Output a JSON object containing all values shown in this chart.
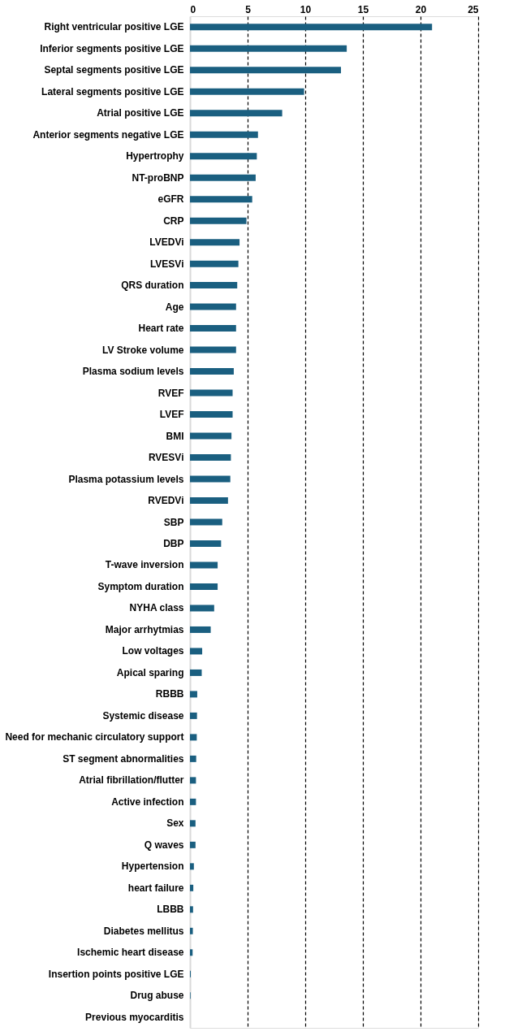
{
  "chart_data": {
    "type": "bar",
    "orientation": "horizontal",
    "categories": [
      "Right ventricular positive LGE",
      "Inferior segments positive LGE",
      "Septal segments positive LGE",
      "Lateral segments positive LGE",
      "Atrial positive LGE",
      "Anterior segments negative LGE",
      "Hypertrophy",
      "NT-proBNP",
      "eGFR",
      "CRP",
      "LVEDVi",
      "LVESVi",
      "QRS duration",
      "Age",
      "Heart rate",
      "LV Stroke volume",
      "Plasma sodium levels",
      "RVEF",
      "LVEF",
      "BMI",
      "RVESVi",
      "Plasma potassium levels",
      "RVEDVi",
      "SBP",
      "DBP",
      "T-wave inversion",
      "Symptom duration",
      "NYHA class",
      "Major arrhytmias",
      "Low voltages",
      "Apical sparing",
      "RBBB",
      "Systemic disease",
      "Need for mechanic circulatory support",
      "ST segment abnormalities",
      "Atrial fibrillation/flutter",
      "Active infection",
      "Sex",
      "Q waves",
      "Hypertension",
      "heart failure",
      "LBBB",
      "Diabetes mellitus",
      "Ischemic heart disease",
      "Insertion points positive LGE",
      "Drug abuse",
      "Previous myocarditis"
    ],
    "values": [
      21.0,
      13.6,
      13.1,
      9.9,
      8.0,
      5.9,
      5.8,
      5.7,
      5.4,
      4.9,
      4.3,
      4.2,
      4.1,
      4.0,
      4.0,
      4.0,
      3.8,
      3.7,
      3.7,
      3.6,
      3.55,
      3.5,
      3.3,
      2.8,
      2.7,
      2.4,
      2.4,
      2.1,
      1.8,
      1.06,
      1.02,
      0.63,
      0.61,
      0.59,
      0.54,
      0.52,
      0.52,
      0.48,
      0.48,
      0.34,
      0.29,
      0.27,
      0.25,
      0.23,
      0.07,
      0.05,
      0
    ],
    "color": "#1a5f80",
    "xlim": [
      0,
      25
    ],
    "xticks": [
      0,
      5,
      10,
      15,
      20,
      25
    ],
    "grid": "x"
  }
}
